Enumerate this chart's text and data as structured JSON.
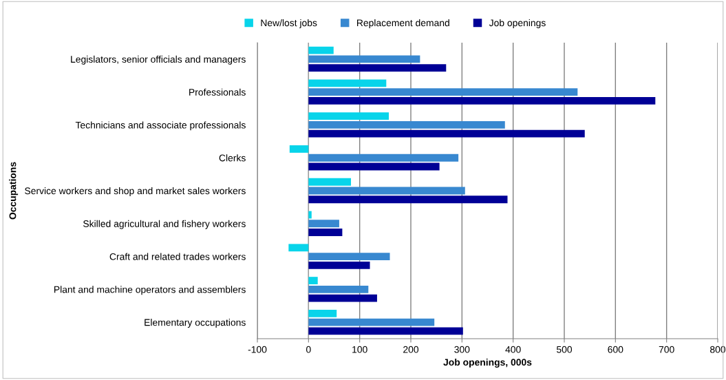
{
  "chart_data": {
    "type": "bar",
    "orientation": "horizontal",
    "categories": [
      "Legislators, senior officials and managers",
      "Professionals",
      "Technicians and associate professionals",
      "Clerks",
      "Service workers and shop and market sales workers",
      "Skilled agricultural and fishery workers",
      "Craft and related trades workers",
      "Plant and machine operators and assemblers",
      "Elementary occupations"
    ],
    "series": [
      {
        "name": "New/lost jobs",
        "color": "#08d4ea",
        "values": [
          49,
          152,
          157,
          -37,
          83,
          6,
          -39,
          18,
          55
        ]
      },
      {
        "name": "Replacement demand",
        "color": "#3888d0",
        "values": [
          218,
          526,
          384,
          293,
          306,
          60,
          159,
          117,
          246
        ]
      },
      {
        "name": "Job openings",
        "color": "#000096",
        "values": [
          269,
          678,
          540,
          256,
          389,
          66,
          120,
          134,
          302
        ]
      }
    ],
    "xlabel": "Job openings, 000s",
    "ylabel": "Occupations",
    "xlim": [
      -100,
      800
    ],
    "xticks": [
      -100,
      0,
      100,
      200,
      300,
      400,
      500,
      600,
      700,
      800
    ],
    "grid": "x",
    "legend": "top"
  }
}
